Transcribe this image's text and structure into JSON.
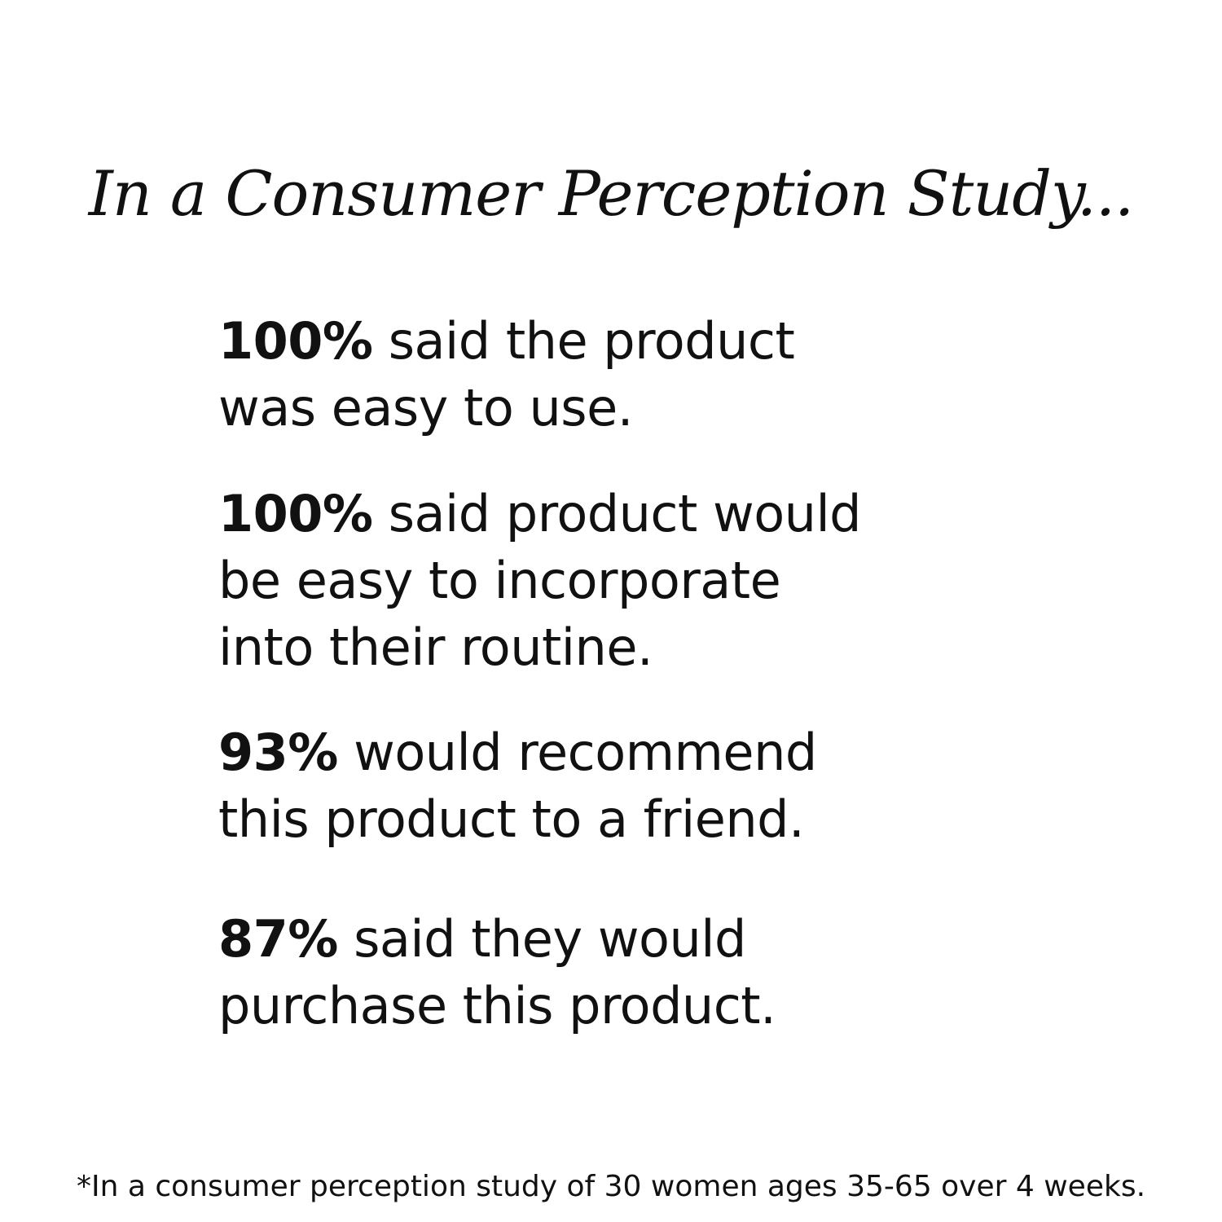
{
  "headline": "In a Consumer Perception Study...",
  "stats": [
    {
      "percent": "100%",
      "line1_rest": " said the product",
      "line2": "was easy to use."
    },
    {
      "percent": "100%",
      "line1_rest": " said product would",
      "line2": "be easy to incorporate",
      "line3": "into their routine."
    },
    {
      "percent": "93%",
      "line1_rest": " would recommend",
      "line2": "this product to a friend."
    },
    {
      "percent": "87%",
      "line1_rest": " said they would",
      "line2": "purchase this product."
    }
  ],
  "footnote": "*In a consumer perception study of 30 women ages 35-65 over 4 weeks."
}
